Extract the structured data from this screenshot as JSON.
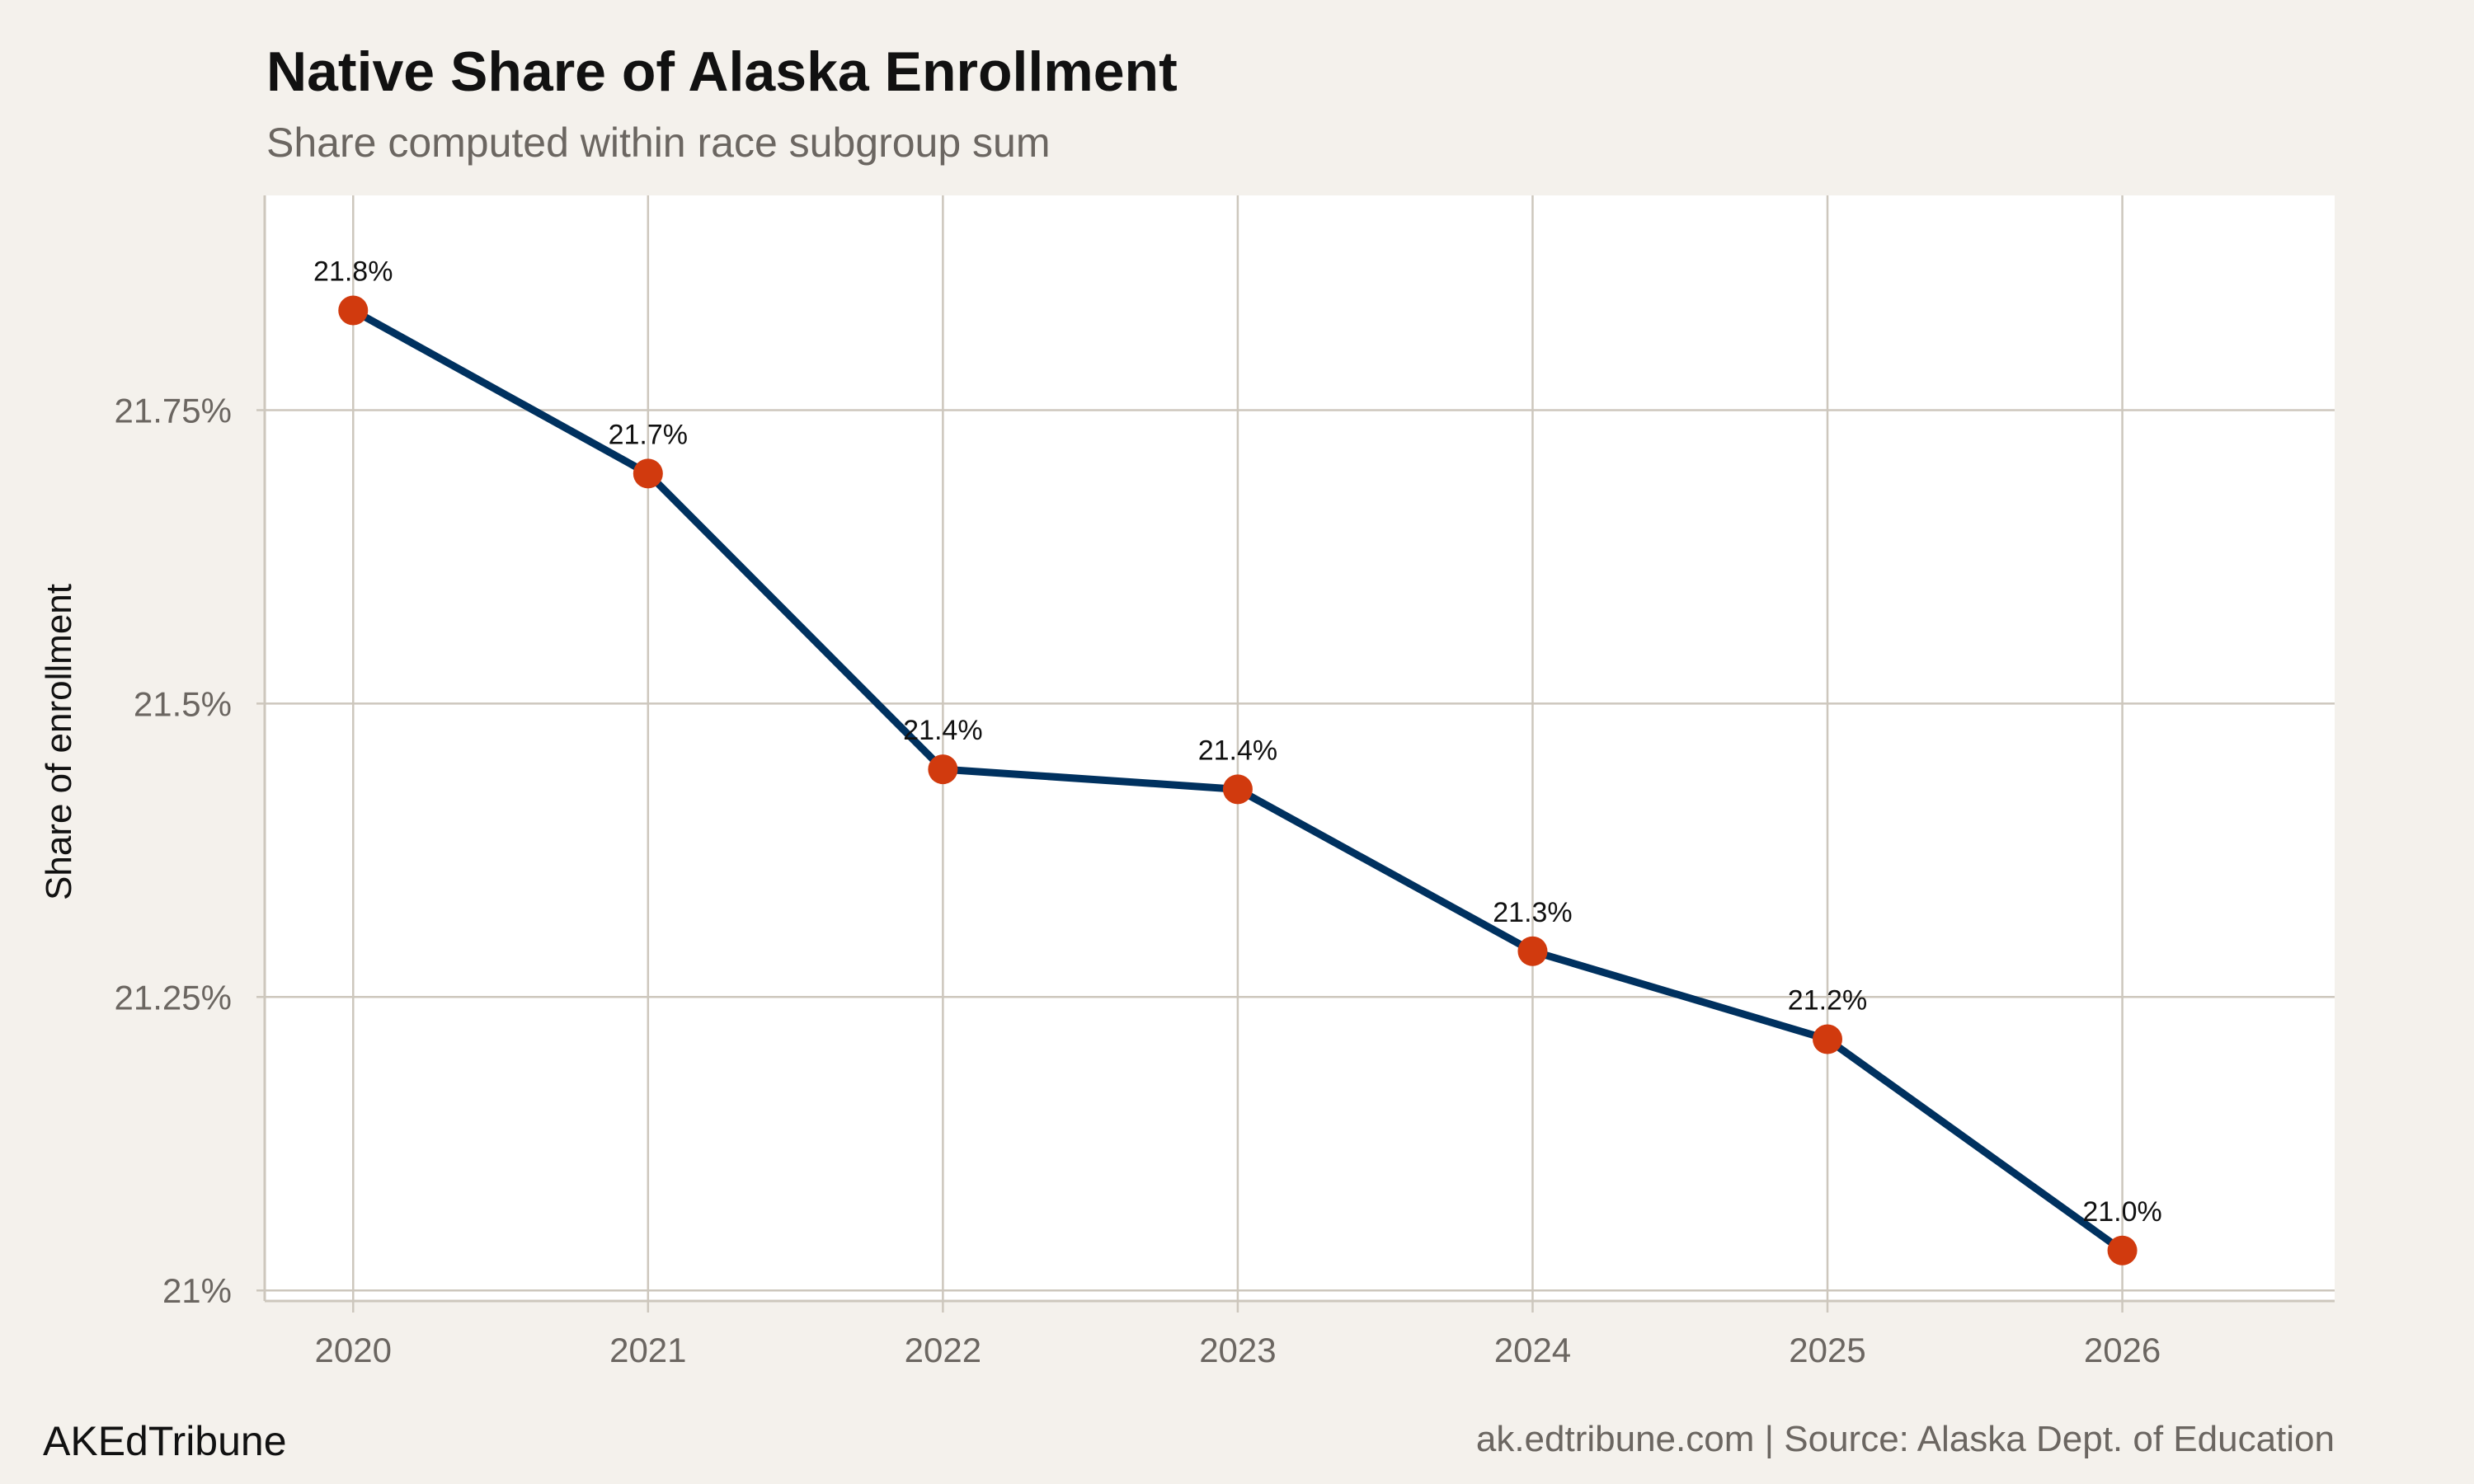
{
  "chart_data": {
    "type": "line",
    "title": "Native Share of Alaska Enrollment",
    "subtitle": "Share computed within race subgroup sum",
    "xlabel": "",
    "ylabel": "Share of enrollment",
    "x": [
      2020,
      2021,
      2022,
      2023,
      2024,
      2025,
      2026
    ],
    "x_tick_labels": [
      "2020",
      "2021",
      "2022",
      "2023",
      "2024",
      "2025",
      "2026"
    ],
    "series": [
      {
        "values": [
          21.835,
          21.696,
          21.444,
          21.427,
          21.289,
          21.214,
          21.034
        ],
        "data_labels": [
          "21.8%",
          "21.7%",
          "21.4%",
          "21.4%",
          "21.3%",
          "21.2%",
          "21.0%"
        ]
      }
    ],
    "y_ticks": [
      21,
      21.25,
      21.5,
      21.75
    ],
    "y_tick_labels": [
      "21%",
      "21.25%",
      "21.5%",
      "21.75%"
    ],
    "xlim": [
      2019.7,
      2026.72
    ],
    "ylim": [
      20.991,
      21.933
    ],
    "grid": true,
    "legend": "none",
    "colors": {
      "line": "#00315f",
      "points": "#d13a0e",
      "background": "#f4f1ec",
      "panel": "#ffffff",
      "grid": "#cdc7bd"
    }
  },
  "footer": {
    "brand": "AKEdTribune",
    "source": "ak.edtribune.com | Source: Alaska Dept. of Education"
  }
}
